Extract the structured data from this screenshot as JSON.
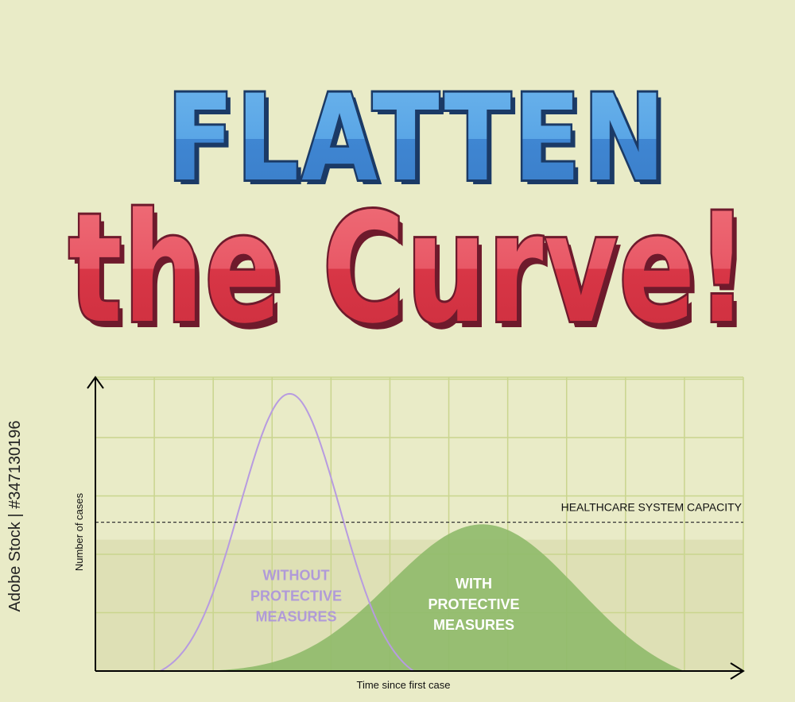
{
  "poster": {
    "title_line1": "FLATTEN",
    "title_line2": "the Curve!",
    "stock_id": "Adobe Stock | #347130196"
  },
  "colors": {
    "background": "#e9ebc7",
    "grid": "#c9d58e",
    "title_blue": "#4a90d9",
    "title_red": "#dc3a4a",
    "curve_without": "#b79be0",
    "curve_with": "#8fba6a",
    "capacity_band": "#d6d7a6"
  },
  "chart_data": {
    "type": "area",
    "xlabel": "Time since first case",
    "ylabel": "Number of cases",
    "capacity_label": "HEALTHCARE SYSTEM CAPACITY",
    "capacity_value": 0.54,
    "xlim": [
      0,
      11
    ],
    "ylim": [
      0,
      1
    ],
    "grid": true,
    "series": [
      {
        "name": "WITHOUT PROTECTIVE MEASURES",
        "label_lines": [
          "WITHOUT",
          "PROTECTIVE",
          "MEASURES"
        ],
        "style": "line",
        "color": "#b79be0",
        "peak_x": 3.3,
        "peak_y": 1.0,
        "spread": 0.85,
        "range": [
          1.1,
          5.4
        ]
      },
      {
        "name": "WITH PROTECTIVE MEASURES",
        "label_lines": [
          "WITH",
          "PROTECTIVE",
          "MEASURES"
        ],
        "style": "area",
        "color": "#8fba6a",
        "peak_x": 6.6,
        "peak_y": 0.51,
        "spread": 1.6,
        "range": [
          1.1,
          10
        ]
      }
    ]
  }
}
